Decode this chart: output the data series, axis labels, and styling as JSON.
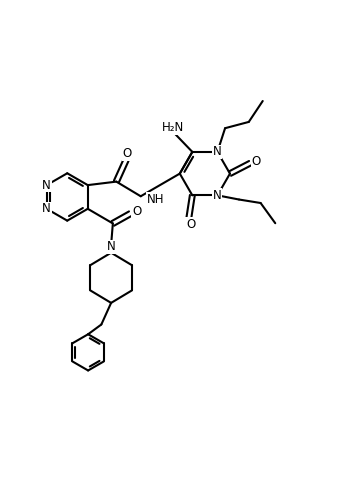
{
  "background_color": "#ffffff",
  "line_width": 1.5,
  "font_size": 8.5,
  "figsize": [
    3.54,
    4.88
  ],
  "dpi": 100,
  "xlim": [
    0,
    10
  ],
  "ylim": [
    -0.5,
    11.5
  ]
}
